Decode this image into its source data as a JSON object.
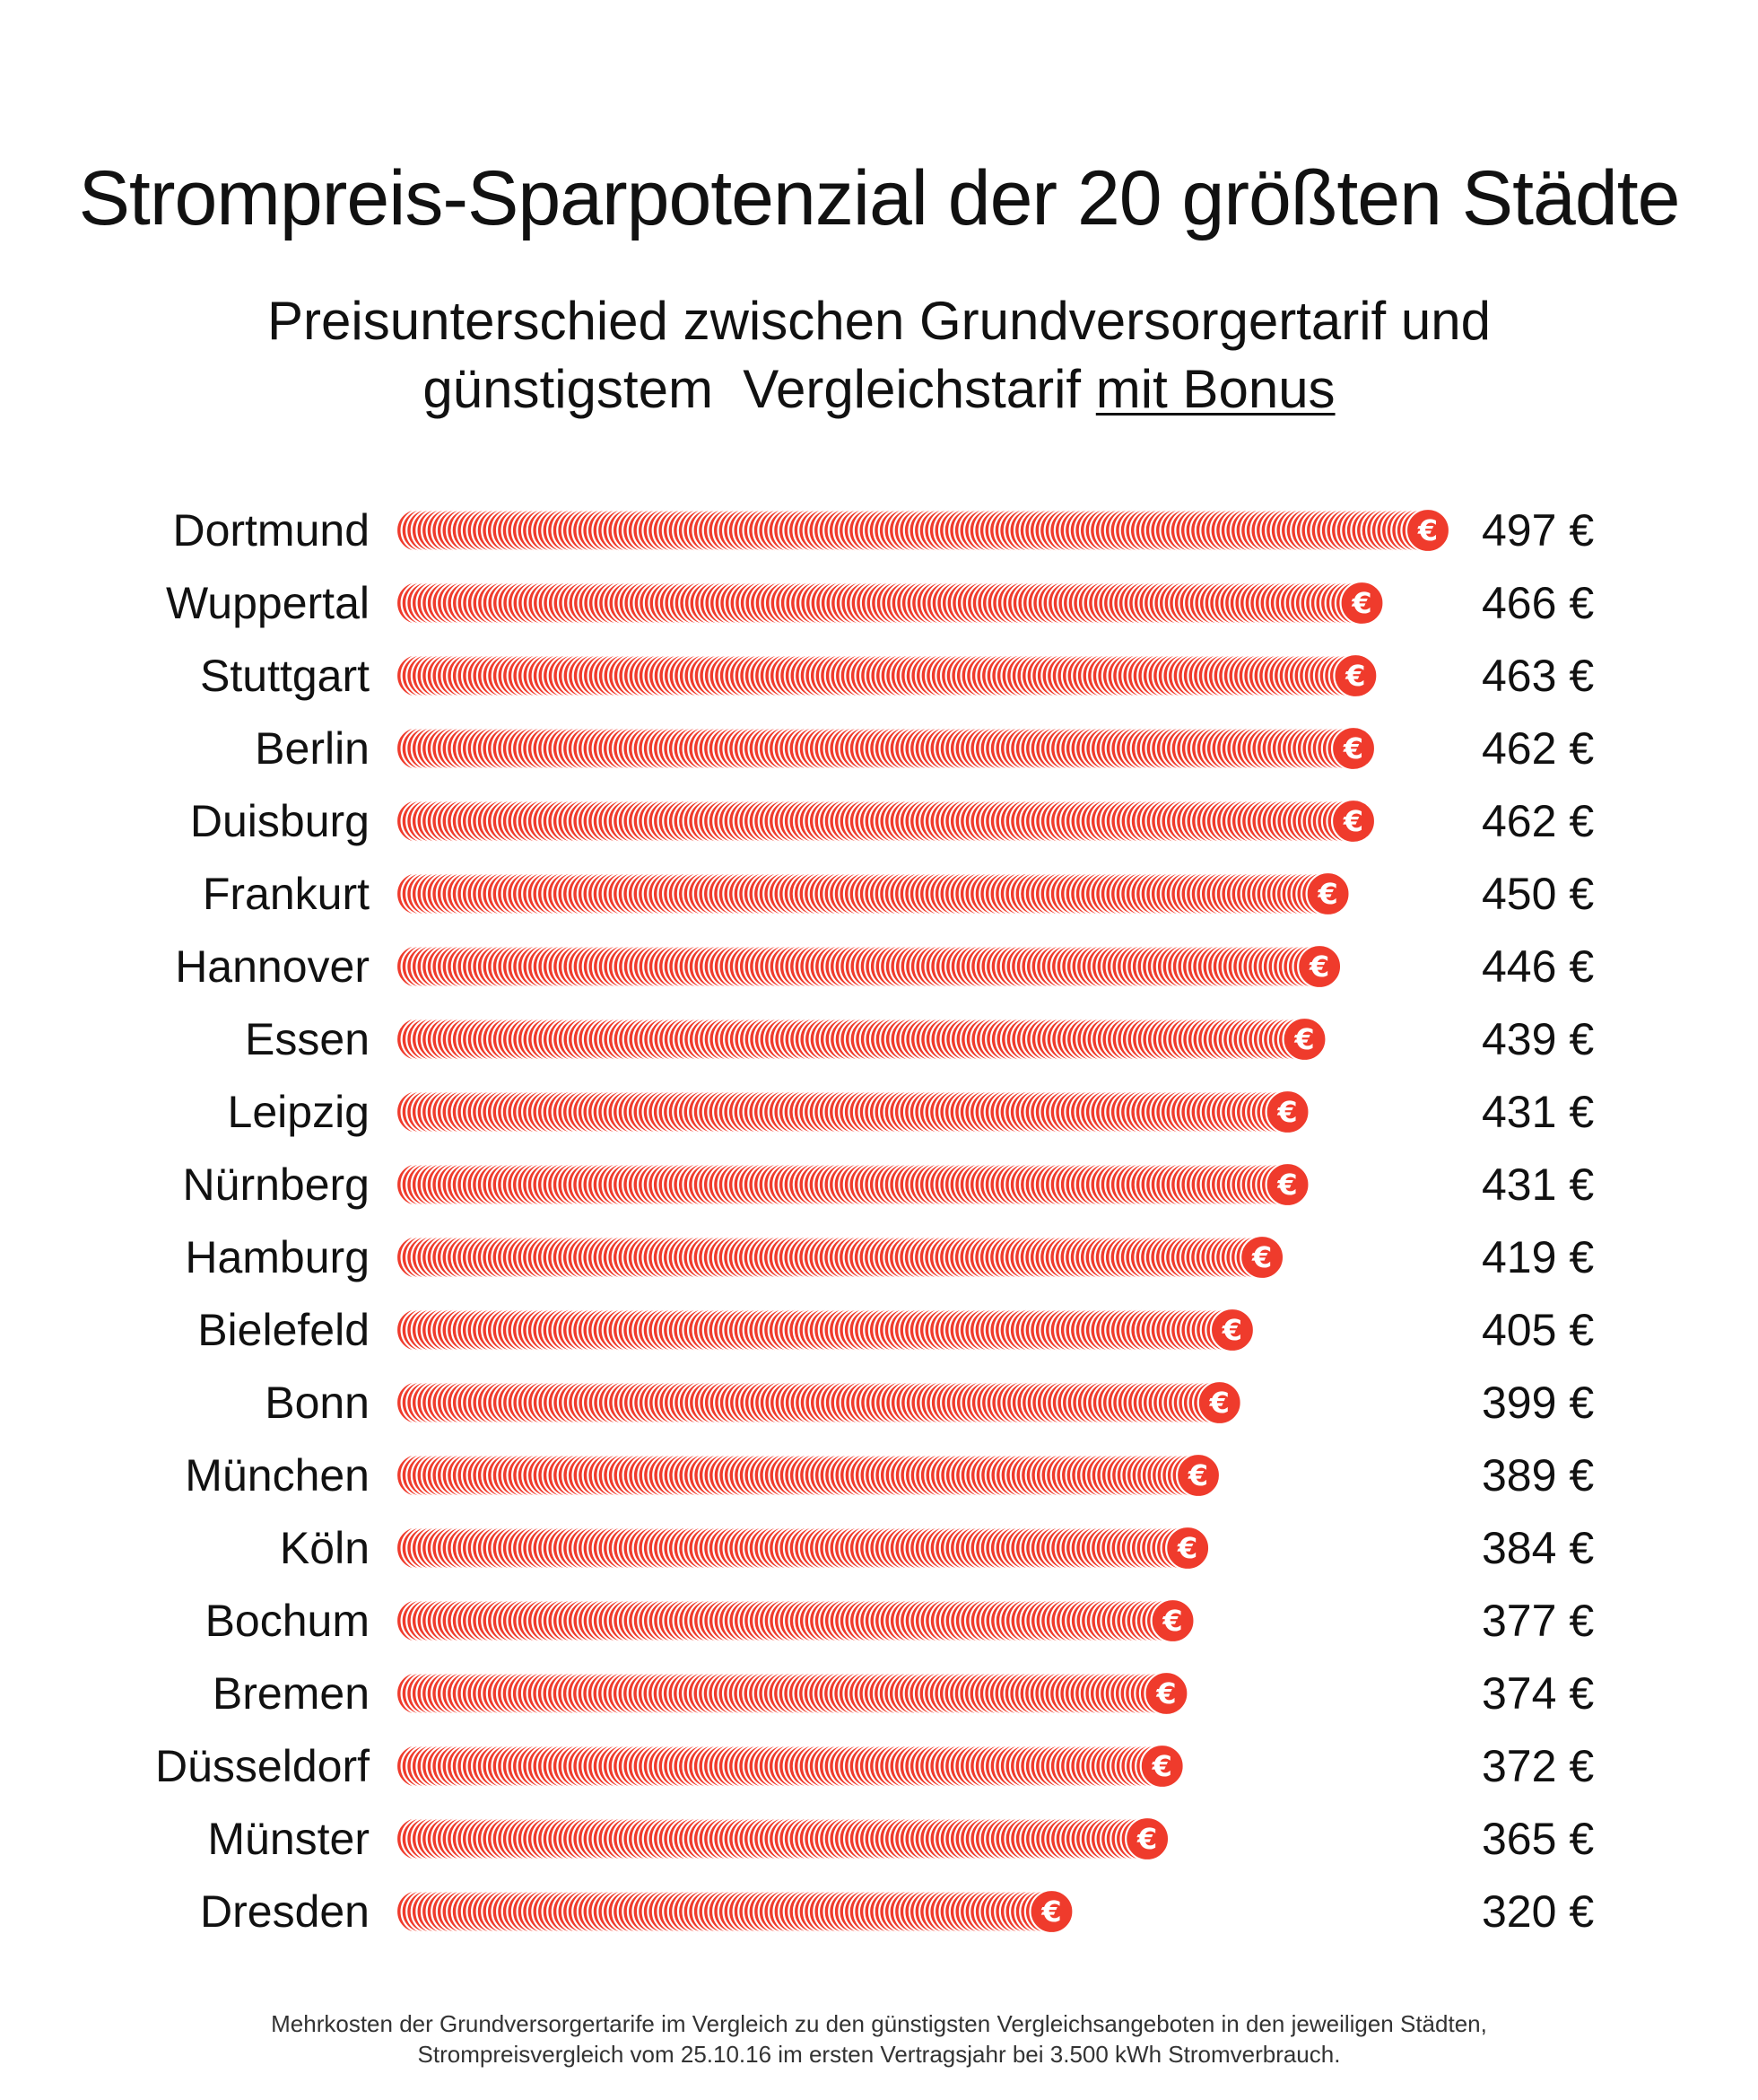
{
  "chart_data": {
    "type": "bar",
    "orientation": "horizontal",
    "title": "Strompreis-Sparpotenzial der 20 größten Städte",
    "subtitle_line1": "Preisunterschied zwischen Grundversorgertarif und",
    "subtitle_line2_prefix": "günstigstem  Vergleichstarif ",
    "subtitle_line2_underlined": "mit Bonus",
    "categories": [
      "Dortmund",
      "Wuppertal",
      "Stuttgart",
      "Berlin",
      "Duisburg",
      "Frankurt",
      "Hannover",
      "Essen",
      "Leipzig",
      "Nürnberg",
      "Hamburg",
      "Bielefeld",
      "Bonn",
      "München",
      "Köln",
      "Bochum",
      "Bremen",
      "Düsseldorf",
      "Münster",
      "Dresden"
    ],
    "values": [
      497,
      466,
      463,
      462,
      462,
      450,
      446,
      439,
      431,
      431,
      419,
      405,
      399,
      389,
      384,
      377,
      374,
      372,
      365,
      320
    ],
    "value_labels": [
      "497 €",
      "466 €",
      "463 €",
      "462 €",
      "462 €",
      "450 €",
      "446 €",
      "439 €",
      "431 €",
      "431 €",
      "419 €",
      "405 €",
      "399 €",
      "389 €",
      "384 €",
      "377 €",
      "374 €",
      "372 €",
      "365 €",
      "320 €"
    ],
    "unit": "€",
    "xlim": [
      0,
      497
    ],
    "coin_symbol": "€",
    "xlabel": "",
    "ylabel": "",
    "grid": false,
    "legend": "none",
    "footnote_line1": "Mehrkosten der Grundversorgertarife im Vergleich zu den günstigsten Vergleichsangeboten in den jeweiligen Städten,",
    "footnote_line2": "Strompreisvergleich vom 25.10.16 im ersten Vertragsjahr bei 3.500 kWh Stromverbrauch."
  },
  "colors": {
    "coin": "#ef3b2c",
    "coin_outline": "#ffffff",
    "text": "#111111"
  }
}
